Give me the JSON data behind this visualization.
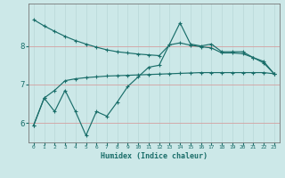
{
  "xlabel": "Humidex (Indice chaleur)",
  "bg_color": "#cce8e8",
  "line_color": "#1a6e6a",
  "hgrid_color": "#d4a0a0",
  "vgrid_color": "#b8d8d8",
  "x_values": [
    0,
    1,
    2,
    3,
    4,
    5,
    6,
    7,
    8,
    9,
    10,
    11,
    12,
    13,
    14,
    15,
    16,
    17,
    18,
    19,
    20,
    21,
    22,
    23
  ],
  "series_zigzag": [
    5.95,
    6.65,
    6.3,
    6.85,
    6.3,
    5.68,
    6.3,
    6.18,
    6.55,
    6.95,
    7.2,
    7.45,
    7.5,
    8.05,
    8.6,
    8.05,
    8.0,
    8.05,
    7.85,
    7.85,
    7.85,
    7.7,
    7.6,
    7.28
  ],
  "series_descend": [
    8.68,
    8.52,
    8.38,
    8.25,
    8.14,
    8.05,
    7.97,
    7.9,
    7.85,
    7.82,
    7.79,
    7.77,
    7.75,
    8.03,
    8.08,
    8.02,
    7.98,
    7.95,
    7.82,
    7.82,
    7.8,
    7.7,
    7.56,
    7.28
  ],
  "series_smooth": [
    5.95,
    6.65,
    6.85,
    7.1,
    7.15,
    7.18,
    7.2,
    7.22,
    7.23,
    7.24,
    7.25,
    7.26,
    7.27,
    7.28,
    7.29,
    7.3,
    7.31,
    7.31,
    7.31,
    7.31,
    7.31,
    7.31,
    7.31,
    7.28
  ],
  "ylim": [
    5.5,
    9.1
  ],
  "yticks": [
    6,
    7,
    8
  ],
  "xticks": [
    0,
    1,
    2,
    3,
    4,
    5,
    6,
    7,
    8,
    9,
    10,
    11,
    12,
    13,
    14,
    15,
    16,
    17,
    18,
    19,
    20,
    21,
    22,
    23
  ],
  "xlim": [
    -0.5,
    23.5
  ]
}
